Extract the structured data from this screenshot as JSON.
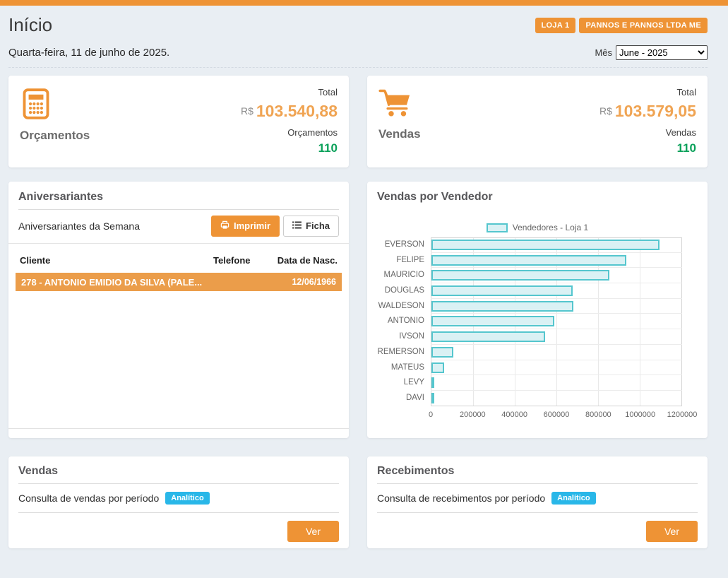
{
  "page": {
    "title": "Início",
    "date": "Quarta-feira, 11 de junho de 2025."
  },
  "header": {
    "store_badge": "LOJA 1",
    "company_badge": "PANNOS E PANNOS LTDA ME",
    "month_label": "Mês",
    "month_value": "June - 2025"
  },
  "summary_cards": [
    {
      "icon": "calculator-icon",
      "label": "Orçamentos",
      "total_label": "Total",
      "currency": "R$",
      "total_value": "103.540,88",
      "count_label": "Orçamentos",
      "count": "110"
    },
    {
      "icon": "cart-icon",
      "label": "Vendas",
      "total_label": "Total",
      "currency": "R$",
      "total_value": "103.579,05",
      "count_label": "Vendas",
      "count": "110"
    }
  ],
  "birthdays": {
    "title": "Aniversariantes",
    "subtitle": "Aniversariantes da Semana",
    "print_button": "Imprimir",
    "ficha_button": "Ficha",
    "columns": [
      "Cliente",
      "Telefone",
      "Data de Nasc."
    ],
    "rows": [
      {
        "cliente": "278 - ANTONIO EMIDIO DA SILVA (PALE...",
        "telefone": "",
        "data_nasc": "12/06/1966"
      }
    ]
  },
  "chart_card": {
    "title": "Vendas por Vendedor"
  },
  "chart_data": {
    "type": "bar",
    "orientation": "horizontal",
    "title": "Vendas por Vendedor",
    "legend": "Vendedores - Loja 1",
    "legend_position": "top",
    "grid": true,
    "categories": [
      "EVERSON",
      "FELIPE",
      "MAURICIO",
      "DOUGLAS",
      "WALDESON",
      "ANTONIO",
      "IVSON",
      "REMERSON",
      "MATEUS",
      "LEVY",
      "DAVI"
    ],
    "values": [
      1090000,
      930000,
      848000,
      674000,
      676000,
      588000,
      543000,
      103000,
      60000,
      6000,
      2500
    ],
    "xlim": [
      0,
      1200000
    ],
    "xticks": [
      "0",
      "200000",
      "400000",
      "600000",
      "800000",
      "1000000",
      "1200000"
    ]
  },
  "bottom_cards": [
    {
      "title": "Vendas",
      "description": "Consulta de vendas por período",
      "badge": "Analítico",
      "button": "Ver"
    },
    {
      "title": "Recebimentos",
      "description": "Consulta de recebimentos por período",
      "badge": "Analítico",
      "button": "Ver"
    }
  ],
  "colors": {
    "accent_orange": "#ee9335",
    "value_orange": "#f0a453",
    "row_orange": "#eb9d4a",
    "success_green": "#0ba15a",
    "info_cyan": "#29b7e8",
    "bar_fill": "#daf1f4",
    "bar_border": "#55c6ce",
    "page_background": "#e9eef3"
  }
}
